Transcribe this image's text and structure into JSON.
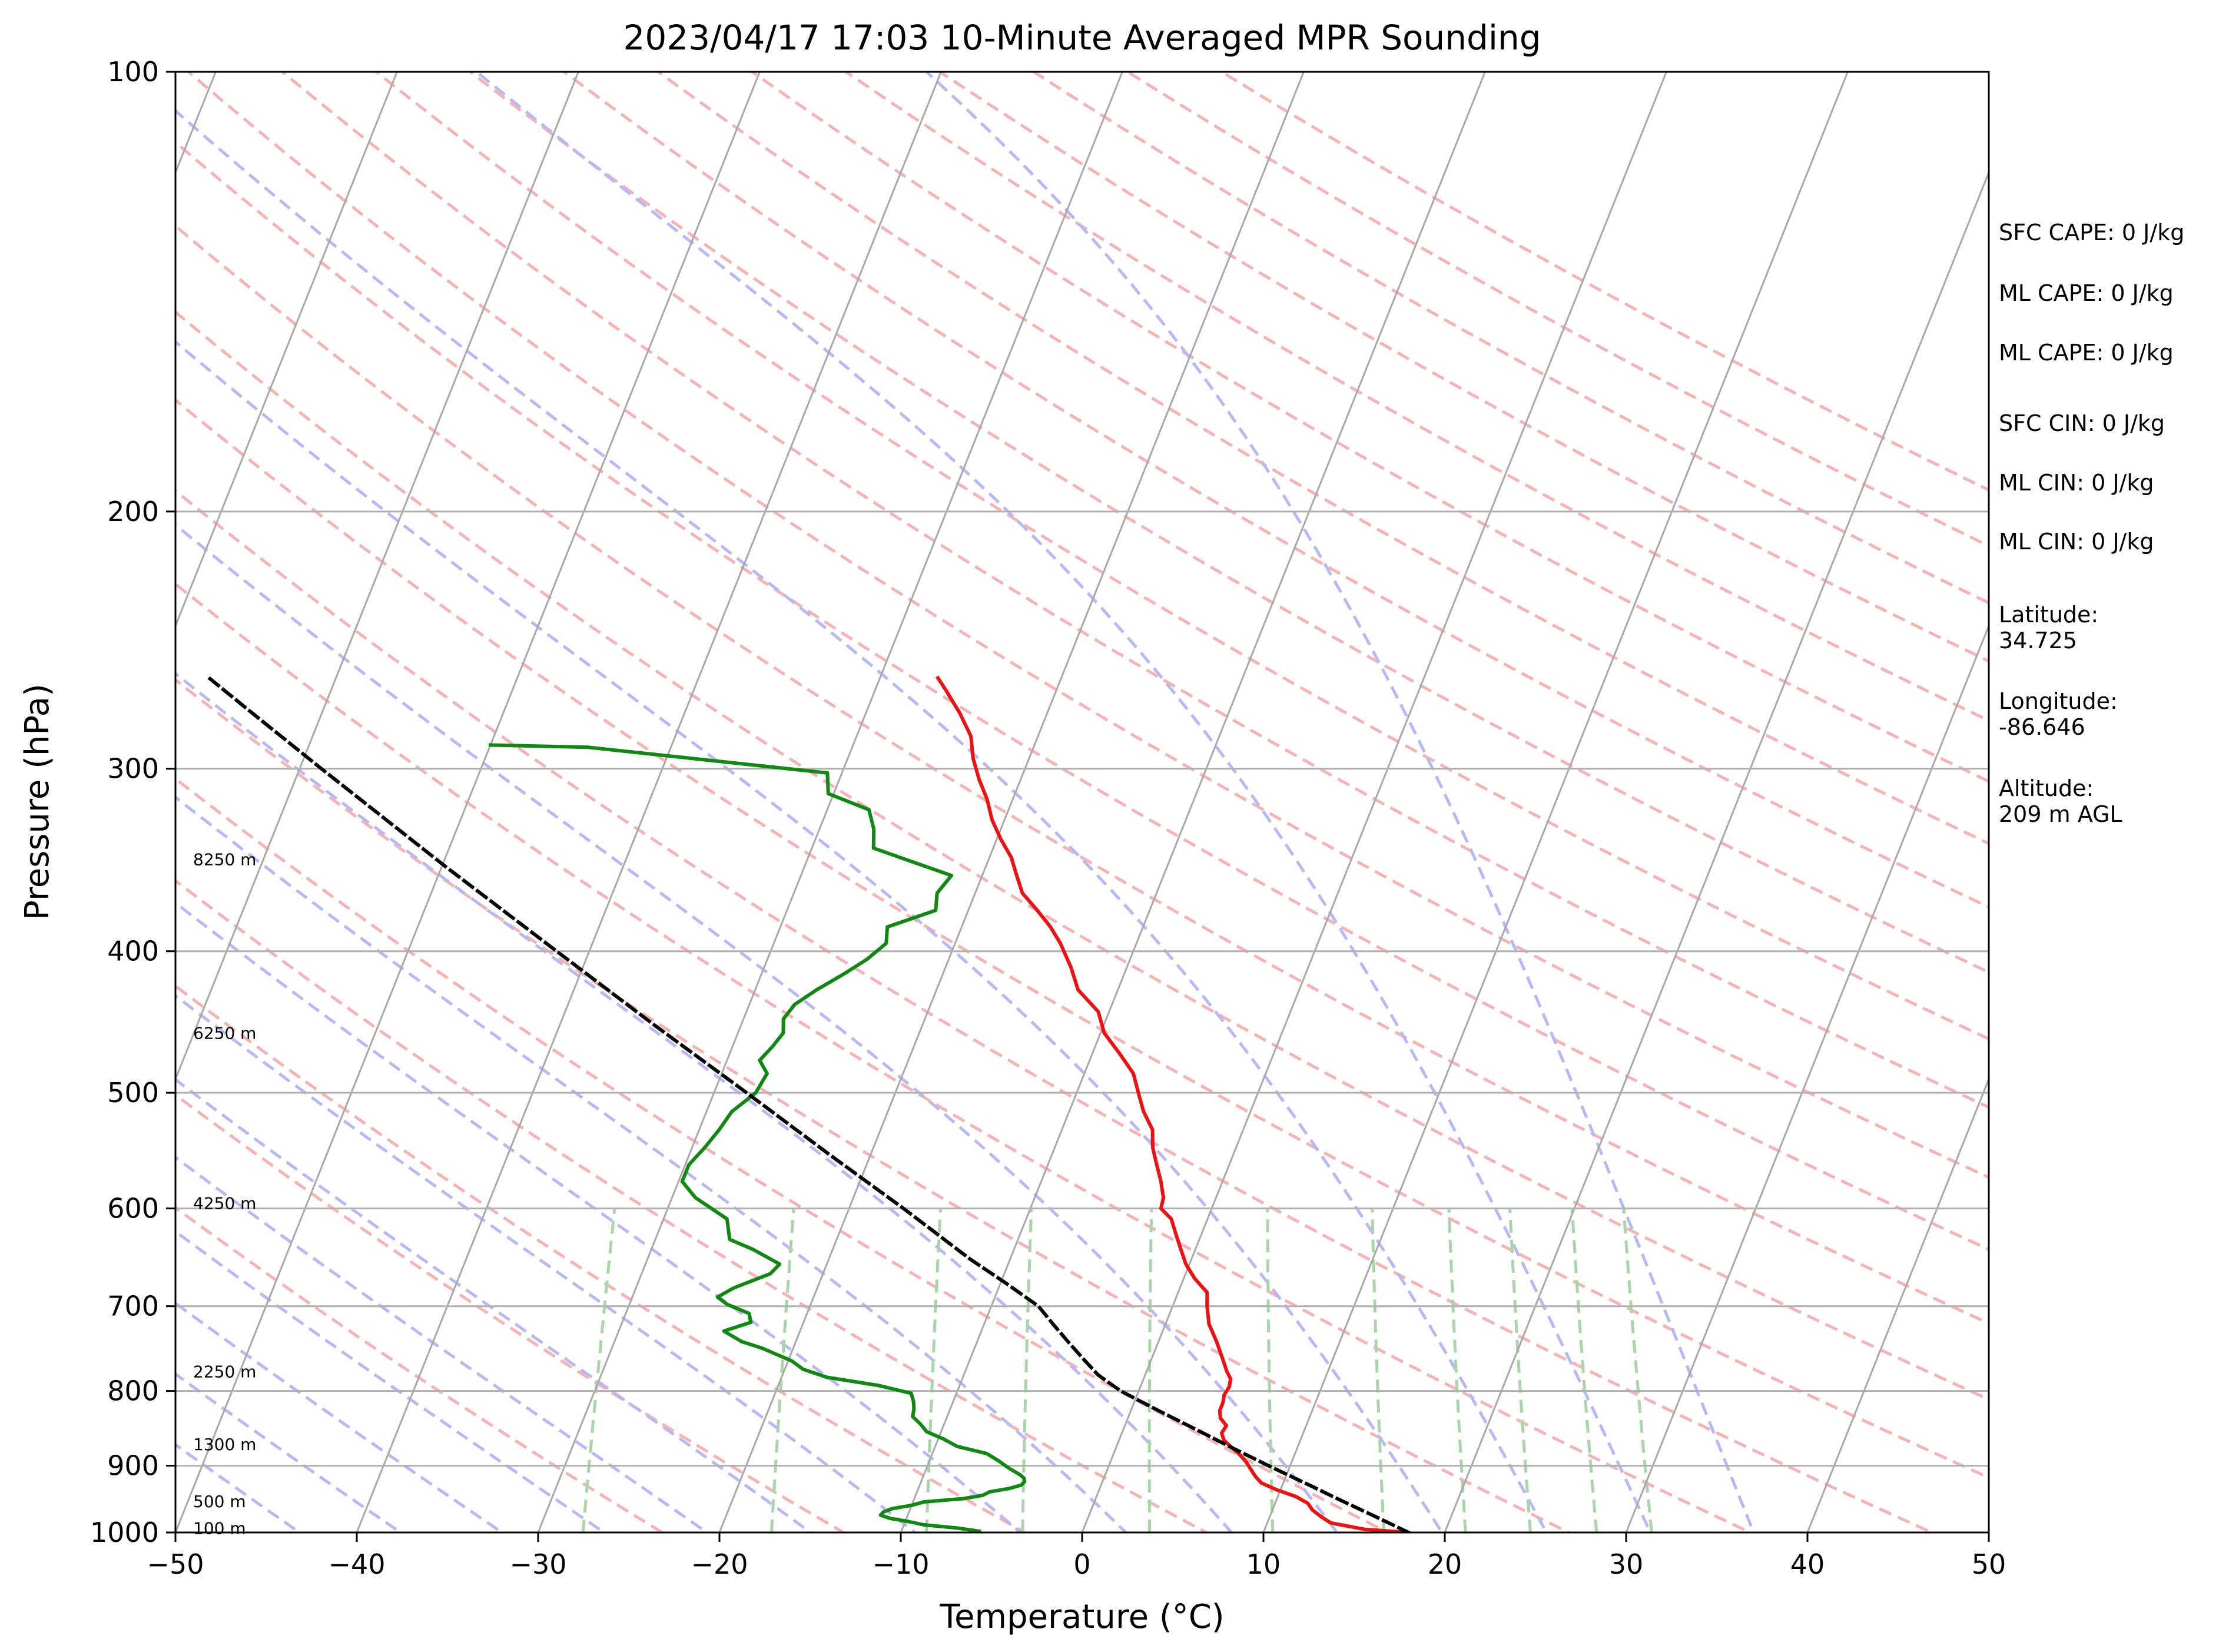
{
  "chart_data": {
    "type": "line",
    "title": "2023/04/17 17:03 10-Minute Averaged MPR Sounding",
    "xlabel": "Temperature (°C)",
    "ylabel": "Pressure (hPa)",
    "xlim": [
      -50,
      50
    ],
    "ylim": [
      1000,
      100
    ],
    "y_scale": "log",
    "grid": true,
    "x_ticks": [
      -50,
      -40,
      -30,
      -20,
      -10,
      0,
      10,
      20,
      30,
      40,
      50
    ],
    "x_tick_labels": [
      "−50",
      "−40",
      "−30",
      "−20",
      "−10",
      "0",
      "10",
      "20",
      "30",
      "40",
      "50"
    ],
    "y_ticks": [
      1000,
      900,
      800,
      700,
      600,
      500,
      400,
      300,
      200,
      100
    ],
    "y_tick_labels": [
      "1000",
      "900",
      "800",
      "700",
      "600",
      "500",
      "400",
      "300",
      "200",
      "100"
    ],
    "height_labels": [
      {
        "text": "100 m",
        "p": 993
      },
      {
        "text": "500 m",
        "p": 952
      },
      {
        "text": "1300 m",
        "p": 870
      },
      {
        "text": "2250 m",
        "p": 776
      },
      {
        "text": "4250 m",
        "p": 595
      },
      {
        "text": "6250 m",
        "p": 455
      },
      {
        "text": "8250 m",
        "p": 346
      }
    ],
    "series": [
      {
        "role": "temperature",
        "color": "#ee1111",
        "points": [
          [
            1000,
            18.0
          ],
          [
            995,
            15.5
          ],
          [
            985,
            13.5
          ],
          [
            975,
            12.8
          ],
          [
            965,
            12.2
          ],
          [
            955,
            11.8
          ],
          [
            945,
            11.0
          ],
          [
            935,
            9.8
          ],
          [
            925,
            8.8
          ],
          [
            915,
            8.3
          ],
          [
            905,
            7.9
          ],
          [
            895,
            7.5
          ],
          [
            885,
            7.0
          ],
          [
            875,
            6.4
          ],
          [
            865,
            5.8
          ],
          [
            855,
            5.5
          ],
          [
            845,
            5.6
          ],
          [
            835,
            5.1
          ],
          [
            825,
            4.9
          ],
          [
            815,
            4.9
          ],
          [
            805,
            4.8
          ],
          [
            795,
            4.9
          ],
          [
            785,
            4.8
          ],
          [
            775,
            4.4
          ],
          [
            760,
            3.9
          ],
          [
            740,
            3.2
          ],
          [
            720,
            2.4
          ],
          [
            700,
            1.9
          ],
          [
            685,
            1.6
          ],
          [
            670,
            0.6
          ],
          [
            655,
            -0.2
          ],
          [
            640,
            -0.8
          ],
          [
            625,
            -1.4
          ],
          [
            610,
            -2.0
          ],
          [
            600,
            -2.8
          ],
          [
            590,
            -2.9
          ],
          [
            575,
            -3.4
          ],
          [
            560,
            -4.0
          ],
          [
            545,
            -4.6
          ],
          [
            530,
            -5.0
          ],
          [
            515,
            -5.9
          ],
          [
            500,
            -6.6
          ],
          [
            485,
            -7.3
          ],
          [
            470,
            -8.5
          ],
          [
            455,
            -9.8
          ],
          [
            440,
            -10.6
          ],
          [
            425,
            -12.2
          ],
          [
            410,
            -13.1
          ],
          [
            395,
            -14.2
          ],
          [
            385,
            -15.1
          ],
          [
            375,
            -16.2
          ],
          [
            365,
            -17.4
          ],
          [
            355,
            -18.1
          ],
          [
            345,
            -18.8
          ],
          [
            335,
            -19.8
          ],
          [
            325,
            -20.7
          ],
          [
            315,
            -21.4
          ],
          [
            305,
            -22.3
          ],
          [
            295,
            -23.1
          ],
          [
            285,
            -23.7
          ],
          [
            275,
            -24.8
          ],
          [
            265,
            -26.1
          ],
          [
            260,
            -26.8
          ]
        ]
      },
      {
        "role": "dewpoint",
        "color": "#118811",
        "points": [
          [
            998,
            -5.7
          ],
          [
            993,
            -7.0
          ],
          [
            988,
            -8.9
          ],
          [
            983,
            -9.8
          ],
          [
            978,
            -10.9
          ],
          [
            973,
            -11.5
          ],
          [
            968,
            -11.4
          ],
          [
            963,
            -11.0
          ],
          [
            958,
            -10.0
          ],
          [
            953,
            -9.4
          ],
          [
            948,
            -7.3
          ],
          [
            943,
            -6.3
          ],
          [
            938,
            -6.0
          ],
          [
            933,
            -5.0
          ],
          [
            928,
            -4.4
          ],
          [
            923,
            -4.3
          ],
          [
            918,
            -4.4
          ],
          [
            913,
            -4.7
          ],
          [
            903,
            -5.5
          ],
          [
            893,
            -6.2
          ],
          [
            883,
            -7.0
          ],
          [
            873,
            -8.8
          ],
          [
            863,
            -9.7
          ],
          [
            853,
            -10.8
          ],
          [
            843,
            -11.3
          ],
          [
            833,
            -11.9
          ],
          [
            823,
            -12.0
          ],
          [
            813,
            -12.2
          ],
          [
            803,
            -12.5
          ],
          [
            793,
            -14.5
          ],
          [
            783,
            -17.5
          ],
          [
            773,
            -19.0
          ],
          [
            763,
            -19.8
          ],
          [
            748,
            -21.7
          ],
          [
            740,
            -23.0
          ],
          [
            728,
            -24.2
          ],
          [
            718,
            -22.9
          ],
          [
            708,
            -23.2
          ],
          [
            698,
            -24.6
          ],
          [
            690,
            -25.3
          ],
          [
            680,
            -24.6
          ],
          [
            665,
            -22.9
          ],
          [
            655,
            -22.6
          ],
          [
            640,
            -24.4
          ],
          [
            630,
            -25.9
          ],
          [
            610,
            -26.5
          ],
          [
            590,
            -28.7
          ],
          [
            575,
            -29.8
          ],
          [
            560,
            -29.8
          ],
          [
            545,
            -29.3
          ],
          [
            530,
            -28.9
          ],
          [
            515,
            -28.6
          ],
          [
            500,
            -27.7
          ],
          [
            485,
            -27.5
          ],
          [
            475,
            -28.2
          ],
          [
            465,
            -27.8
          ],
          [
            455,
            -27.5
          ],
          [
            445,
            -27.8
          ],
          [
            435,
            -27.5
          ],
          [
            425,
            -26.6
          ],
          [
            415,
            -25.5
          ],
          [
            405,
            -24.5
          ],
          [
            395,
            -23.8
          ],
          [
            385,
            -24.1
          ],
          [
            375,
            -21.8
          ],
          [
            365,
            -22.1
          ],
          [
            355,
            -21.7
          ],
          [
            340,
            -26.6
          ],
          [
            330,
            -27.0
          ],
          [
            320,
            -27.7
          ],
          [
            312,
            -30.3
          ],
          [
            302,
            -30.8
          ],
          [
            290,
            -44.6
          ],
          [
            289,
            -50.0
          ]
        ]
      },
      {
        "role": "parcel",
        "color": "#000000",
        "dashed": true,
        "points": [
          [
            1000,
            18.0
          ],
          [
            975,
            15.8
          ],
          [
            950,
            13.5
          ],
          [
            925,
            11.2
          ],
          [
            900,
            8.8
          ],
          [
            875,
            6.4
          ],
          [
            850,
            4.0
          ],
          [
            825,
            1.5
          ],
          [
            800,
            -1.0
          ],
          [
            780,
            -2.6
          ],
          [
            760,
            -3.8
          ],
          [
            740,
            -5.0
          ],
          [
            720,
            -6.2
          ],
          [
            700,
            -7.4
          ],
          [
            675,
            -9.7
          ],
          [
            650,
            -12.2
          ],
          [
            600,
            -17.0
          ],
          [
            550,
            -22.4
          ],
          [
            500,
            -28.2
          ],
          [
            450,
            -34.7
          ],
          [
            400,
            -41.8
          ],
          [
            350,
            -49.8
          ],
          [
            300,
            -58.8
          ],
          [
            275,
            -63.8
          ],
          [
            260,
            -67.0
          ]
        ]
      }
    ],
    "background_lines": {
      "isotherm_color": "#a8a8a8",
      "dry_adiabat_color": "#f7b3b3",
      "moist_adiabat_color": "#b8b8f7",
      "mixing_ratio_color": "#a9d6a9"
    },
    "annotations": {
      "sfc_cape": "SFC CAPE: 0 J/kg",
      "ml_cape_1": "ML CAPE: 0 J/kg",
      "ml_cape_2": "ML CAPE: 0 J/kg",
      "sfc_cin": "SFC CIN: 0 J/kg",
      "ml_cin_1": "ML CIN: 0 J/kg",
      "ml_cin_2": "ML CIN: 0 J/kg",
      "latitude": "Latitude:\n34.725",
      "longitude": "Longitude:\n-86.646",
      "altitude": "Altitude:\n209 m AGL"
    }
  }
}
